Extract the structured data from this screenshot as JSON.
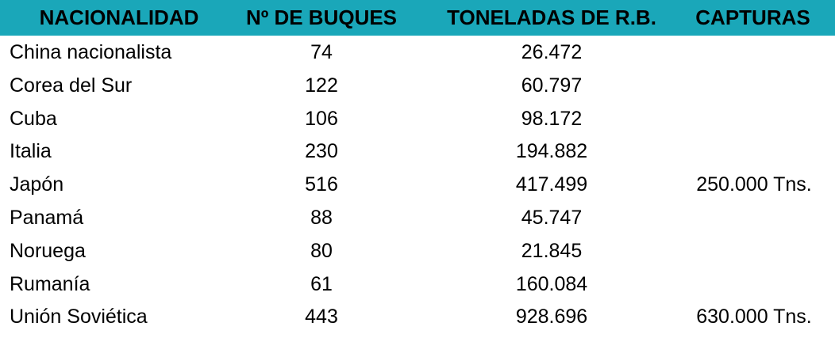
{
  "headers": [
    "NACIONALIDAD",
    "Nº DE BUQUES",
    "TONELADAS DE R.B.",
    "CAPTURAS"
  ],
  "colors": {
    "header_bg": "#1aa7b9",
    "text": "#000000"
  },
  "rows": [
    {
      "nacionalidad": "China nacionalista",
      "buques": "74",
      "toneladas": "26.472",
      "capturas": ""
    },
    {
      "nacionalidad": "Corea del Sur",
      "buques": "122",
      "toneladas": "60.797",
      "capturas": ""
    },
    {
      "nacionalidad": "Cuba",
      "buques": "106",
      "toneladas": "98.172",
      "capturas": ""
    },
    {
      "nacionalidad": "Italia",
      "buques": "230",
      "toneladas": "194.882",
      "capturas": ""
    },
    {
      "nacionalidad": "Japón",
      "buques": "516",
      "toneladas": "417.499",
      "capturas": "250.000 Tns."
    },
    {
      "nacionalidad": "Panamá",
      "buques": "88",
      "toneladas": "45.747",
      "capturas": ""
    },
    {
      "nacionalidad": "Noruega",
      "buques": "80",
      "toneladas": "21.845",
      "capturas": ""
    },
    {
      "nacionalidad": "Rumanía",
      "buques": "61",
      "toneladas": "160.084",
      "capturas": ""
    },
    {
      "nacionalidad": "Unión Soviética",
      "buques": "443",
      "toneladas": "928.696",
      "capturas": "630.000 Tns."
    }
  ]
}
